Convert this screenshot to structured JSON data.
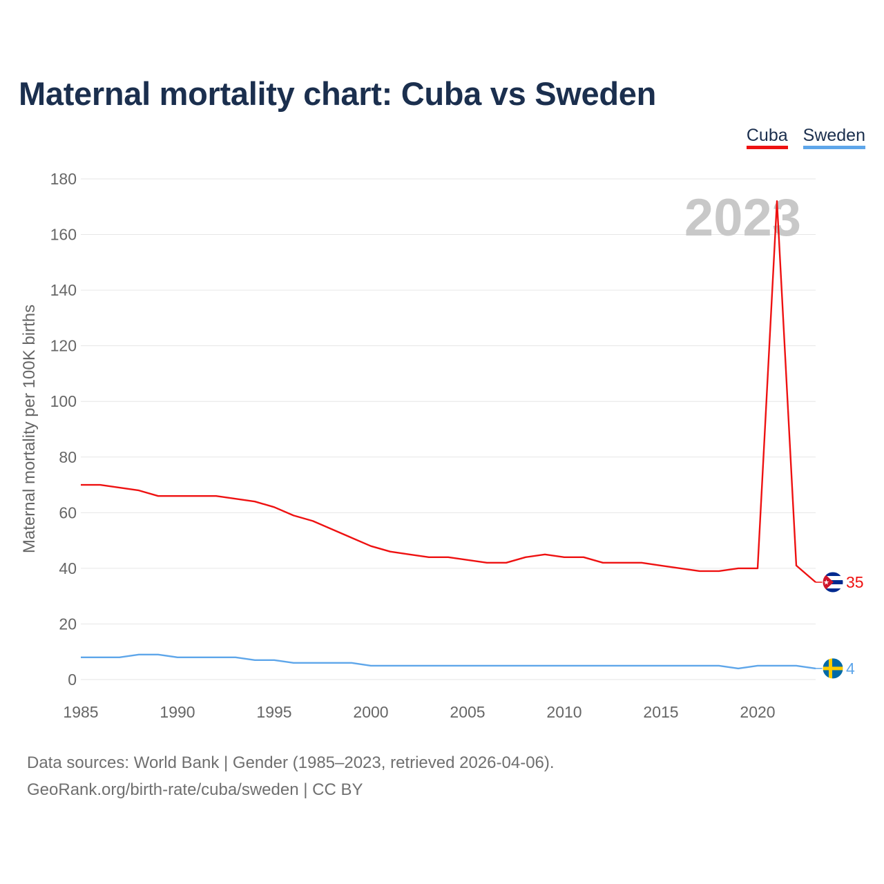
{
  "title": "Maternal mortality chart: Cuba vs Sweden",
  "legend": [
    {
      "label": "Cuba",
      "color": "#ee1111"
    },
    {
      "label": "Sweden",
      "color": "#5ea6ea"
    }
  ],
  "chart_data": {
    "type": "line",
    "ylabel": "Maternal mortality per 100K births",
    "xlabel": "",
    "xlim": [
      1985,
      2023
    ],
    "ylim": [
      0,
      180
    ],
    "x_ticks": [
      1985,
      1990,
      1995,
      2000,
      2005,
      2010,
      2015,
      2020
    ],
    "y_ticks": [
      0,
      20,
      40,
      60,
      80,
      100,
      120,
      140,
      160,
      180
    ],
    "year_watermark": "2023",
    "grid": true,
    "x": [
      1985,
      1986,
      1987,
      1988,
      1989,
      1990,
      1991,
      1992,
      1993,
      1994,
      1995,
      1996,
      1997,
      1998,
      1999,
      2000,
      2001,
      2002,
      2003,
      2004,
      2005,
      2006,
      2007,
      2008,
      2009,
      2010,
      2011,
      2012,
      2013,
      2014,
      2015,
      2016,
      2017,
      2018,
      2019,
      2020,
      2021,
      2022,
      2023
    ],
    "series": [
      {
        "name": "Cuba",
        "color": "#ee1111",
        "end_label": "35",
        "values": [
          70,
          70,
          69,
          68,
          66,
          66,
          66,
          66,
          65,
          64,
          62,
          59,
          57,
          54,
          51,
          48,
          46,
          45,
          44,
          44,
          43,
          42,
          42,
          44,
          45,
          44,
          44,
          42,
          42,
          42,
          41,
          40,
          39,
          39,
          40,
          40,
          172,
          41,
          35
        ]
      },
      {
        "name": "Sweden",
        "color": "#5ea6ea",
        "end_label": "4",
        "values": [
          8,
          8,
          8,
          9,
          9,
          8,
          8,
          8,
          8,
          7,
          7,
          6,
          6,
          6,
          6,
          5,
          5,
          5,
          5,
          5,
          5,
          5,
          5,
          5,
          5,
          5,
          5,
          5,
          5,
          5,
          5,
          5,
          5,
          5,
          4,
          5,
          5,
          5,
          4
        ]
      }
    ]
  },
  "footer": {
    "line1": "Data sources: World Bank | Gender (1985–2023, retrieved 2026-04-06).",
    "line2": "GeoRank.org/birth-rate/cuba/sweden | CC BY"
  }
}
